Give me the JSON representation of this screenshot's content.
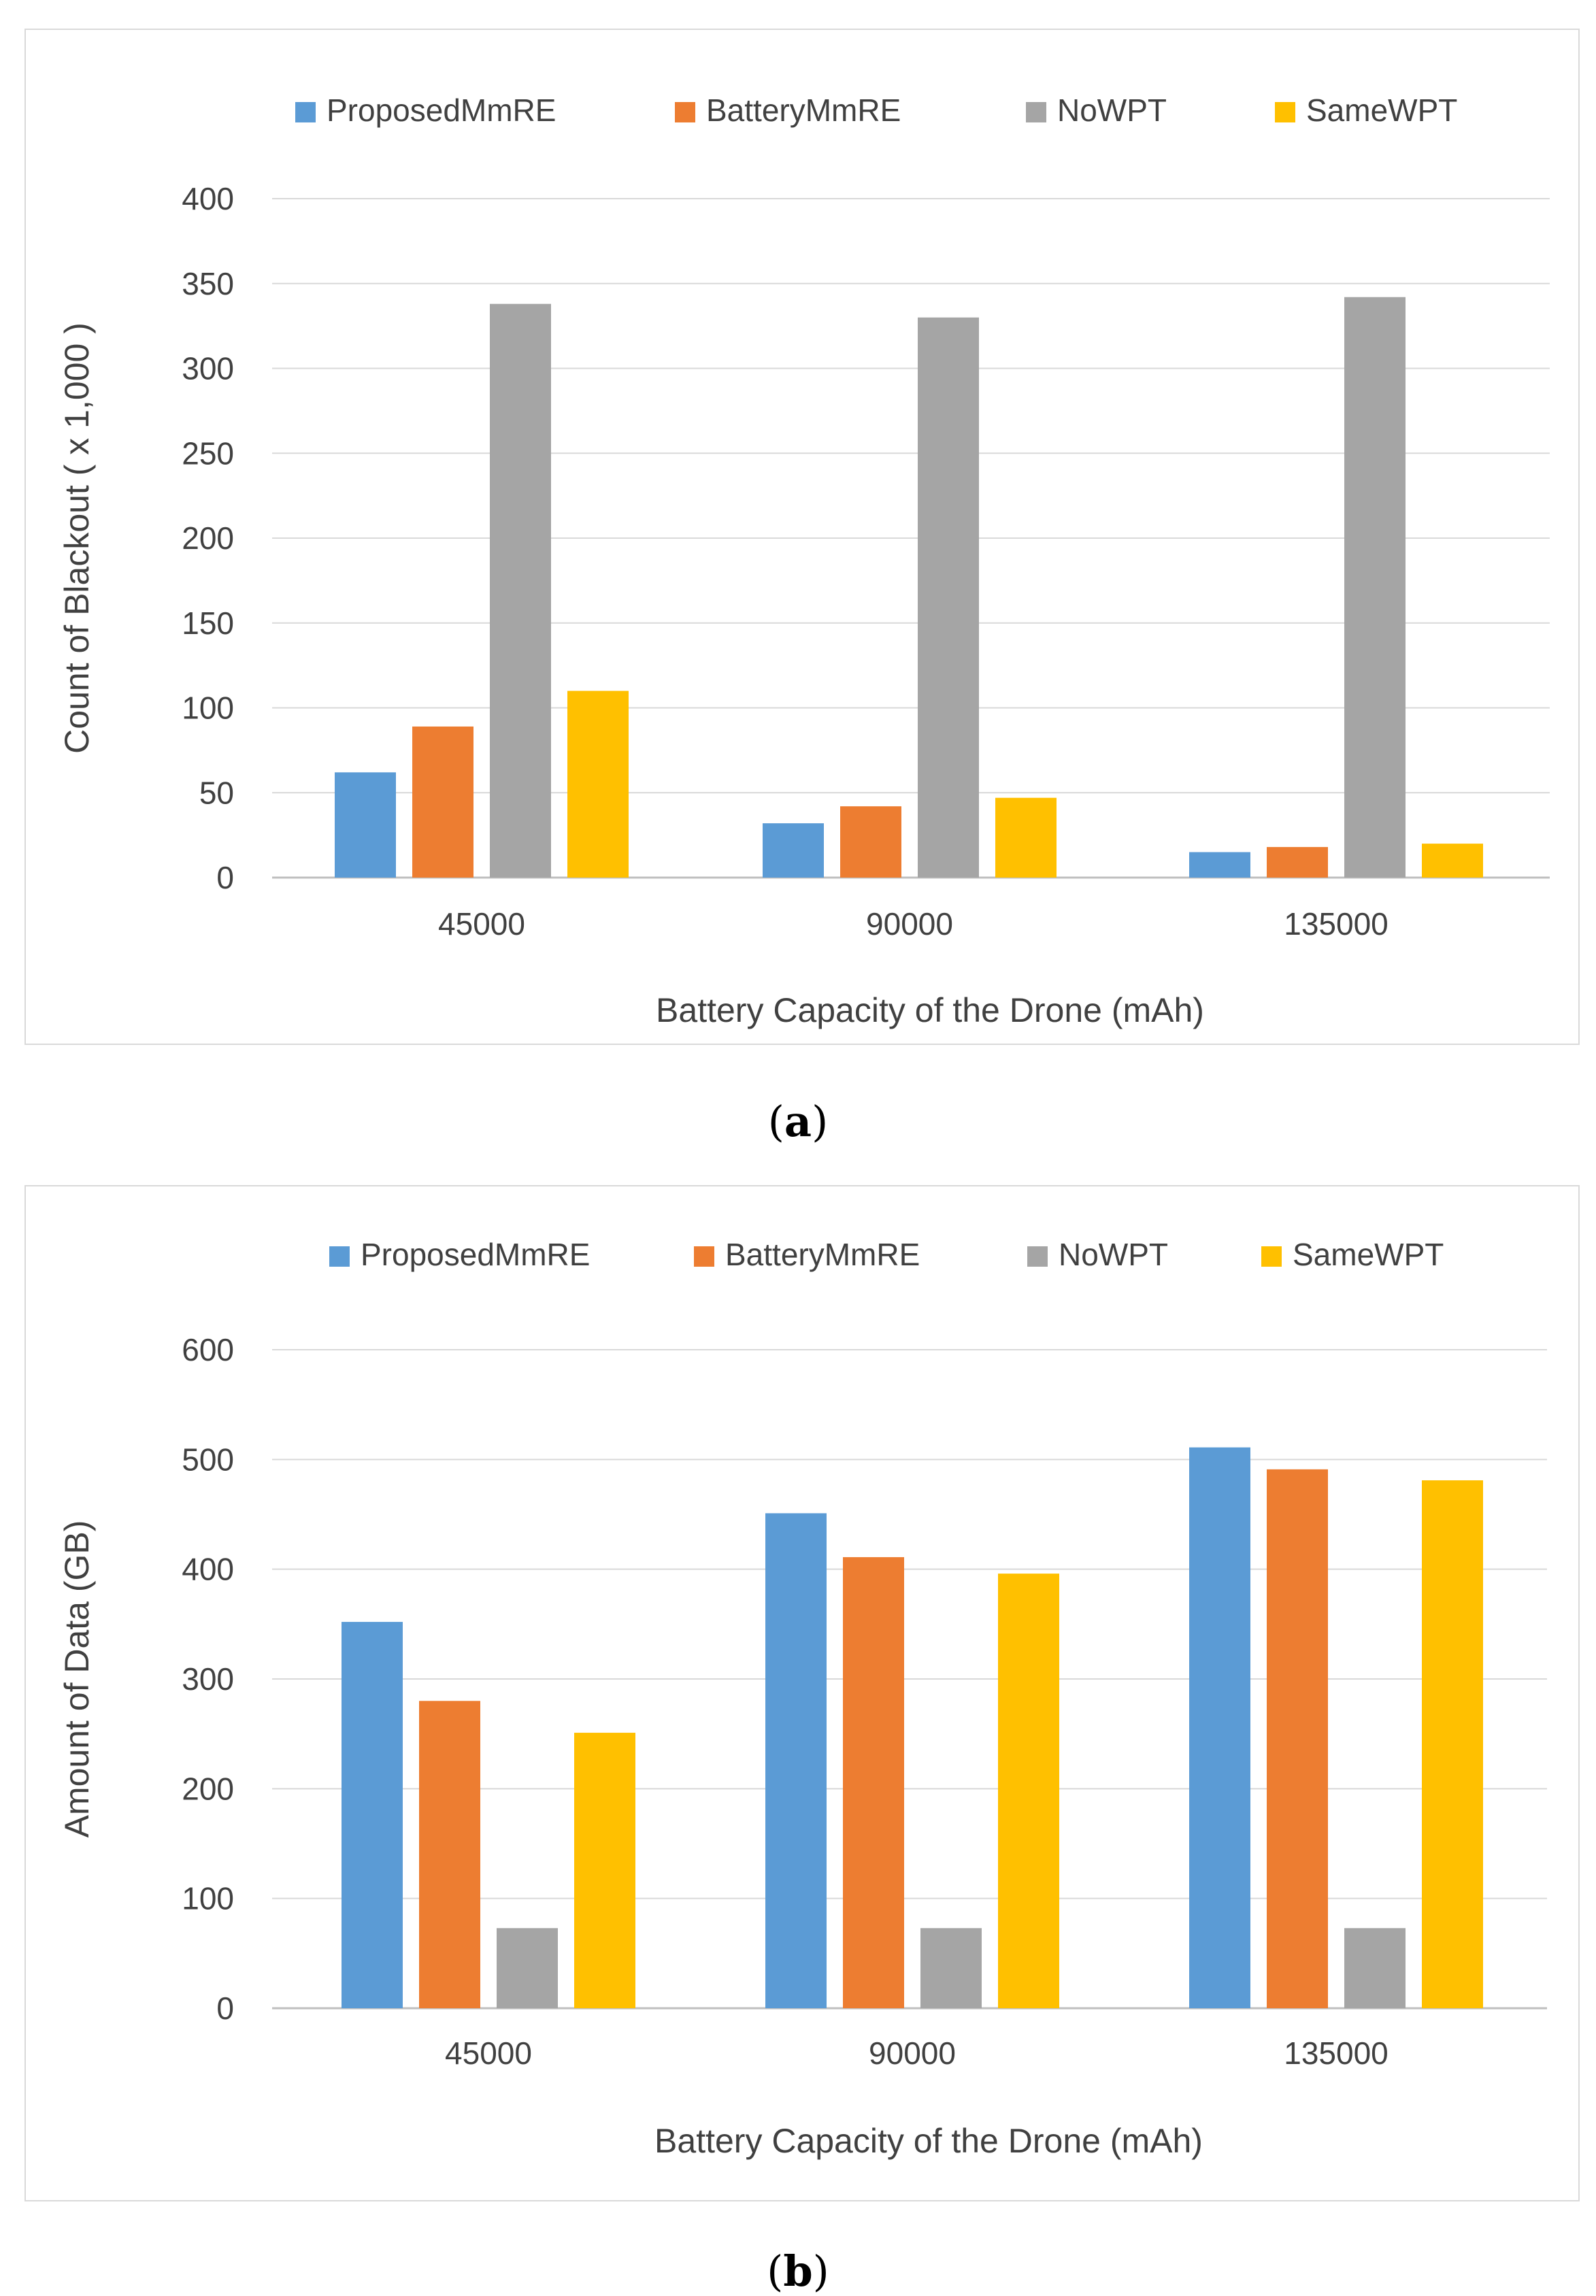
{
  "chart_data": [
    {
      "type": "bar",
      "panel_label": "a",
      "title": "",
      "categories": [
        "45000",
        "90000",
        "135000"
      ],
      "series": [
        {
          "name": "ProposedMmRE",
          "color": "#5b9bd5",
          "values": [
            62,
            32,
            15
          ]
        },
        {
          "name": "BatteryMmRE",
          "color": "#ed7d31",
          "values": [
            89,
            42,
            18
          ]
        },
        {
          "name": "NoWPT",
          "color": "#a5a5a5",
          "values": [
            338,
            330,
            342
          ]
        },
        {
          "name": "SameWPT",
          "color": "#ffc000",
          "values": [
            110,
            47,
            20
          ]
        }
      ],
      "xlabel": "Battery Capacity of  the Drone (mAh)",
      "ylabel": "Count of Blackout  ( x 1,000 )",
      "ylim": [
        0,
        400
      ],
      "yticks": [
        "0",
        "50",
        "100",
        "150",
        "200",
        "250",
        "300",
        "350",
        "400"
      ],
      "legend_position": "top",
      "grid": true
    },
    {
      "type": "bar",
      "panel_label": "b",
      "title": "",
      "categories": [
        "45000",
        "90000",
        "135000"
      ],
      "series": [
        {
          "name": "ProposedMmRE",
          "color": "#5b9bd5",
          "values": [
            352,
            451,
            511
          ]
        },
        {
          "name": "BatteryMmRE",
          "color": "#ed7d31",
          "values": [
            280,
            411,
            491
          ]
        },
        {
          "name": "NoWPT",
          "color": "#a5a5a5",
          "values": [
            73,
            73,
            73
          ]
        },
        {
          "name": "SameWPT",
          "color": "#ffc000",
          "values": [
            251,
            396,
            481
          ]
        }
      ],
      "xlabel": "Battery Capacity of  the Drone (mAh)",
      "ylabel": "Amount of Data  (GB)",
      "ylim": [
        0,
        600
      ],
      "yticks": [
        "0",
        "100",
        "200",
        "300",
        "400",
        "500",
        "600"
      ],
      "legend_position": "top",
      "grid": true
    }
  ],
  "captions": {
    "a": {
      "open": "(",
      "label": "a",
      "close": ")"
    },
    "b": {
      "open": "(",
      "label": "b",
      "close": ")"
    }
  }
}
